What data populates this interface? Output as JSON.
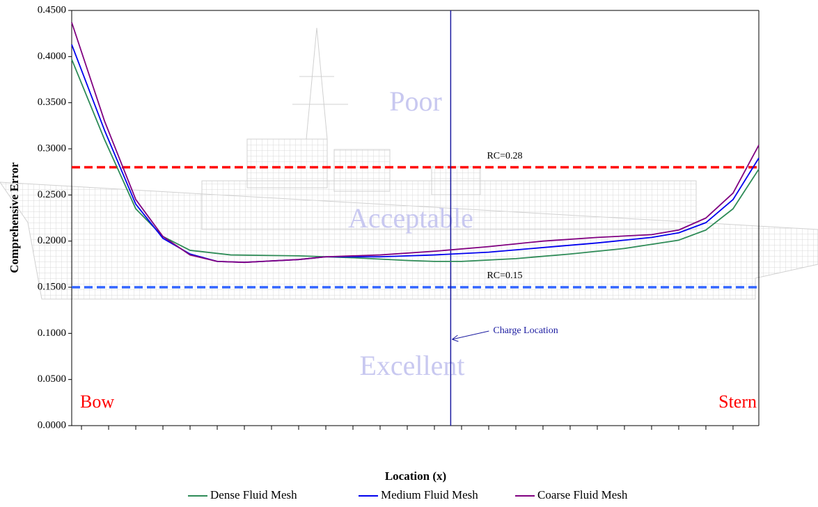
{
  "chart_data": {
    "type": "line",
    "xlabel": "Location (x)",
    "ylabel": "Comprehensive Error",
    "xlim": [
      -0.36,
      24.95
    ],
    "xticks": [
      0,
      1,
      2,
      3,
      4,
      5,
      6,
      7,
      8,
      9,
      10,
      11,
      12,
      13,
      14,
      15,
      16,
      17,
      18,
      19,
      20,
      21,
      22,
      23,
      24
    ],
    "ylim": [
      0,
      0.45
    ],
    "yticks": [
      {
        "value": 0,
        "label": "0.0000"
      },
      {
        "value": 0.05,
        "label": "0.0500"
      },
      {
        "value": 0.1,
        "label": "0.1000"
      },
      {
        "value": 0.15,
        "label": "0.1500"
      },
      {
        "value": 0.2,
        "label": "0.2000"
      },
      {
        "value": 0.25,
        "label": "0.2500"
      },
      {
        "value": 0.3,
        "label": "0.3000"
      },
      {
        "value": 0.35,
        "label": "0.3500"
      },
      {
        "value": 0.4,
        "label": "0.4000"
      },
      {
        "value": 0.45,
        "label": "0.4500"
      }
    ],
    "series": [
      {
        "name": "Dense Fluid Mesh",
        "color": "#2e8b57",
        "x": [
          -0.36,
          0.85,
          2,
          3,
          4,
          5.5,
          8,
          10,
          12,
          13,
          14,
          16,
          18,
          20,
          22,
          23,
          24,
          24.95
        ],
        "values": [
          0.397,
          0.31,
          0.235,
          0.205,
          0.19,
          0.185,
          0.184,
          0.182,
          0.179,
          0.178,
          0.178,
          0.181,
          0.186,
          0.192,
          0.201,
          0.212,
          0.235,
          0.278
        ]
      },
      {
        "name": "Medium Fluid Mesh",
        "color": "#0000ee",
        "x": [
          -0.36,
          0.85,
          2,
          3,
          4,
          5,
          6,
          8,
          9,
          11,
          13,
          15,
          17,
          19,
          21,
          22,
          23,
          24,
          24.95
        ],
        "values": [
          0.413,
          0.32,
          0.24,
          0.203,
          0.186,
          0.178,
          0.177,
          0.18,
          0.183,
          0.183,
          0.185,
          0.188,
          0.193,
          0.198,
          0.204,
          0.209,
          0.22,
          0.245,
          0.29
        ]
      },
      {
        "name": "Coarse Fluid Mesh",
        "color": "#800080",
        "x": [
          -0.36,
          0.85,
          2,
          3,
          4,
          5,
          6,
          8,
          9,
          11,
          13,
          15,
          17,
          19,
          21,
          22,
          23,
          24,
          24.95
        ],
        "values": [
          0.437,
          0.33,
          0.245,
          0.205,
          0.185,
          0.178,
          0.177,
          0.18,
          0.183,
          0.185,
          0.189,
          0.194,
          0.2,
          0.204,
          0.207,
          0.212,
          0.225,
          0.252,
          0.304
        ]
      }
    ],
    "reference_lines": [
      {
        "value": 0.28,
        "label": "RC=0.28",
        "color": "#ff0000"
      },
      {
        "value": 0.15,
        "label": "RC=0.15",
        "color": "#3366ff"
      }
    ],
    "vertical_line": {
      "x": 13.6,
      "label": "Charge Location",
      "color": "#1a1aa0"
    },
    "zone_labels": [
      "Poor",
      "Acceptable",
      "Excellent"
    ],
    "end_labels": [
      "Bow",
      "Stern"
    ]
  }
}
